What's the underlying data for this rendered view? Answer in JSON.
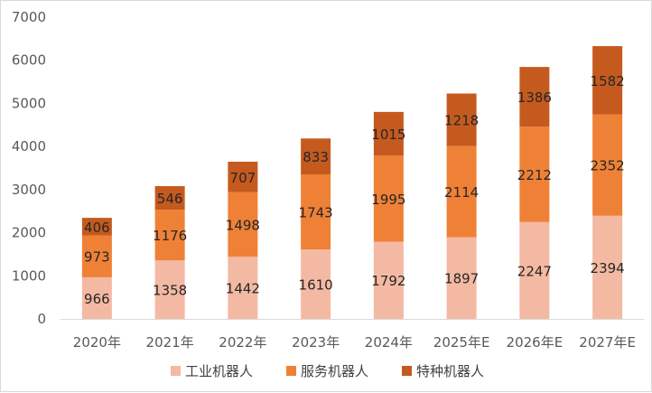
{
  "chart_data": {
    "type": "bar",
    "stacked": true,
    "categories": [
      "2020年",
      "2021年",
      "2022年",
      "2023年",
      "2024年",
      "2025年E",
      "2026年E",
      "2027年E"
    ],
    "series": [
      {
        "name": "工业机器人",
        "color": "#f4b9a3",
        "values": [
          966,
          1358,
          1442,
          1610,
          1792,
          1897,
          2247,
          2394
        ]
      },
      {
        "name": "服务机器人",
        "color": "#ef8136",
        "values": [
          973,
          1176,
          1498,
          1743,
          1995,
          2114,
          2212,
          2352
        ]
      },
      {
        "name": "特种机器人",
        "color": "#c55a1f",
        "values": [
          406,
          546,
          707,
          833,
          1015,
          1218,
          1386,
          1582
        ]
      }
    ],
    "yticks": [
      "0",
      "1000",
      "2000",
      "3000",
      "4000",
      "5000",
      "6000",
      "7000"
    ],
    "ylim": [
      0,
      7000
    ],
    "grid": false,
    "legend_position": "bottom",
    "title": "",
    "xlabel": "",
    "ylabel": ""
  }
}
